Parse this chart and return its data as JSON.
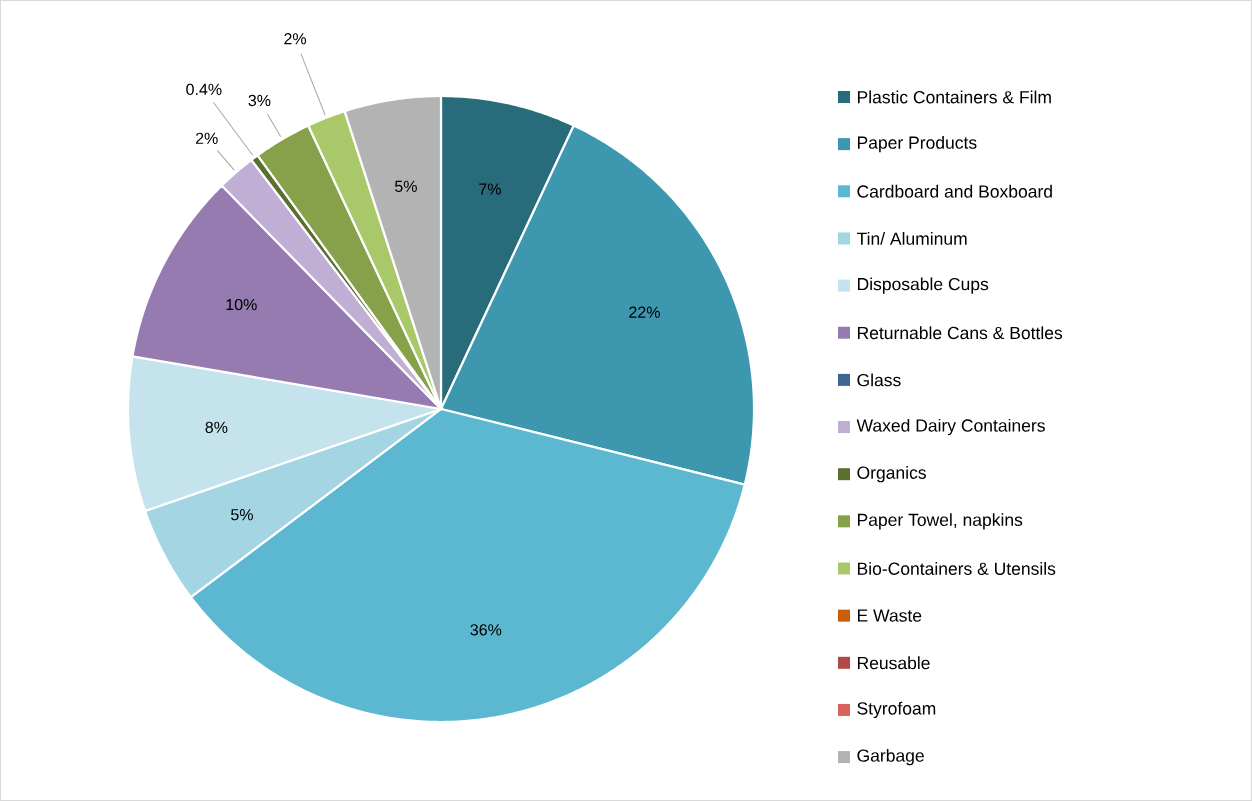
{
  "chart_data": {
    "type": "pie",
    "categories": [
      "Plastic Containers & Film",
      "Paper Products",
      "Cardboard and Boxboard",
      "Tin/ Aluminum",
      "Disposable Cups",
      "Returnable Cans & Bottles",
      "Glass",
      "Waxed Dairy Containers",
      "Organics",
      "Paper Towel, napkins",
      "Bio-Containers & Utensils",
      "E Waste",
      "Reusable",
      "Styrofoam",
      "Garbage"
    ],
    "values": [
      7,
      22,
      36,
      5,
      8,
      10,
      0,
      2,
      0.4,
      3,
      2,
      0,
      0,
      0,
      5
    ],
    "value_labels": [
      "7%",
      "22%",
      "36%",
      "5%",
      "8%",
      "10%",
      null,
      "2%",
      "0.4%",
      "3%",
      "2%",
      null,
      null,
      null,
      "5%"
    ],
    "colors": [
      "#286c7b",
      "#3d97ae",
      "#5bb8d0",
      "#a3d5e3",
      "#c4e3ec",
      "#957bb0",
      "#3c6690",
      "#c0aed4",
      "#5a7030",
      "#86a14a",
      "#a9c86a",
      "#c65e0a",
      "#b04a44",
      "#d9635c",
      "#b3b3b3"
    ],
    "legend": "right"
  }
}
